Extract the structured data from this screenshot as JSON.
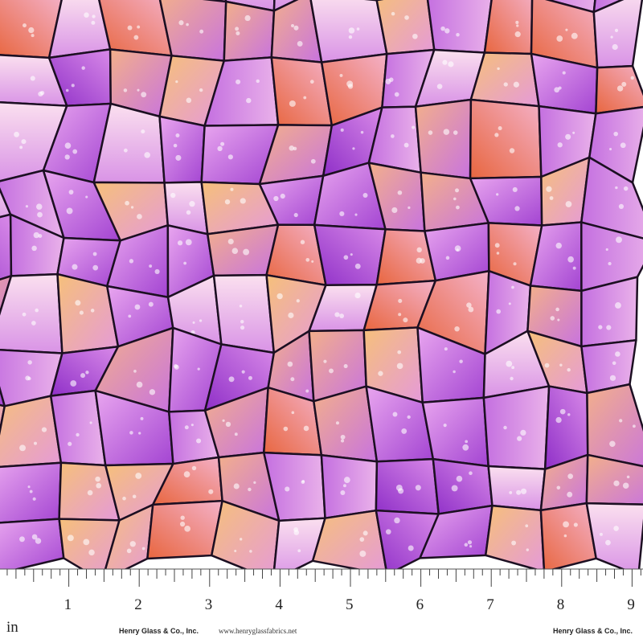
{
  "ruler": {
    "unit": "in",
    "labels": [
      1,
      2,
      3,
      4,
      5,
      6,
      7,
      8,
      9
    ]
  },
  "footer": {
    "brand": "Henry Glass & Co., Inc.",
    "website": "www.henryglassfabrics.net",
    "brand_repeat": "Henry Glass & Co., Inc."
  }
}
